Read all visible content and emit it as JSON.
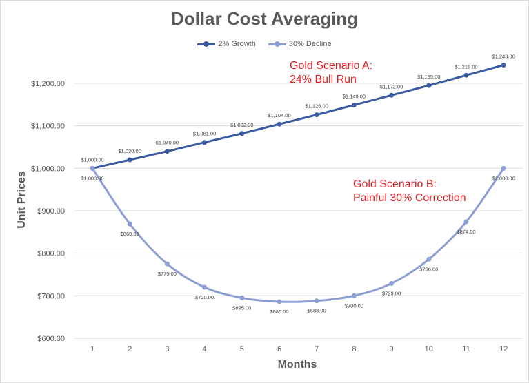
{
  "chart_data": {
    "type": "line",
    "title": "Dollar Cost Averaging",
    "xlabel": "Months",
    "ylabel": "Unit Prices",
    "categories": [
      "1",
      "2",
      "3",
      "4",
      "5",
      "6",
      "7",
      "8",
      "9",
      "10",
      "11",
      "12"
    ],
    "ylim": [
      600,
      1250
    ],
    "yticks": [
      600,
      700,
      800,
      900,
      1000,
      1100,
      1200
    ],
    "ytick_labels": [
      "$600.00",
      "$700.00",
      "$800.00",
      "$900.00",
      "$1,000.00",
      "$1,100.00",
      "$1,200.00"
    ],
    "grid": "horizontal",
    "legend_position": "top",
    "series": [
      {
        "name": "2% Growth",
        "color": "#3a5ba0",
        "values": [
          1000,
          1020,
          1040,
          1061,
          1082,
          1104,
          1126,
          1149,
          1172,
          1195,
          1219,
          1243
        ],
        "labels": [
          "$1,000.00",
          "$1,020.00",
          "$1,040.00",
          "$1,061.00",
          "$1,082.00",
          "$1,104.00",
          "$1,126.00",
          "$1,149.00",
          "$1,172.00",
          "$1,195.00",
          "$1,219.00",
          "$1,243.00"
        ],
        "label_position": "above"
      },
      {
        "name": "30% Decline",
        "color": "#8d9fd2",
        "values": [
          1000,
          869,
          775,
          720,
          695,
          686,
          688,
          700,
          729,
          786,
          874,
          1000
        ],
        "labels": [
          "$1,000.00",
          "$869.00",
          "$775.00",
          "$720.00",
          "$695.00",
          "$686.00",
          "$688.00",
          "$700.00",
          "$729.00",
          "$786.00",
          "$874.00",
          "$1,000.00"
        ],
        "label_position": "below"
      }
    ],
    "annotations": [
      {
        "lines": [
          "Gold Scenario A:",
          "24% Bull Run"
        ],
        "color": "#e31e24"
      },
      {
        "lines": [
          "Gold Scenario B:",
          "Painful 30% Correction"
        ],
        "color": "#e31e24"
      }
    ],
    "gridline_color": "#d9d9d9"
  }
}
